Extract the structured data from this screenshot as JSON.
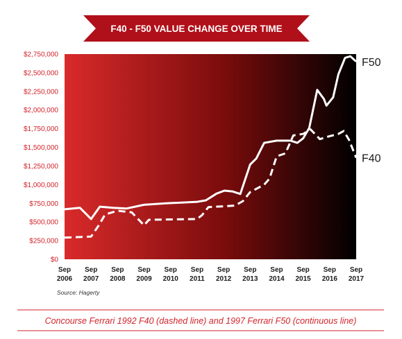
{
  "header": {
    "title": "F40 - F50 VALUE CHANGE OVER TIME"
  },
  "source": "Source: Hagerty",
  "caption": "Concourse Ferrari 1992 F40 (dashed line) and 1997 Ferrari F50 (continuous line)",
  "colors": {
    "banner": "#b0101a",
    "gradient_start": "#d92a2a",
    "gradient_mid": "#7a0c0c",
    "gradient_end": "#000000",
    "line": "#ffffff",
    "tick_text": "#d2232a",
    "caption": "#d2232a"
  },
  "chart_data": {
    "type": "line",
    "title": "F40 - F50 VALUE CHANGE OVER TIME",
    "xlabel": "",
    "ylabel": "",
    "ylim": [
      0,
      2750000
    ],
    "yticks": [
      0,
      250000,
      500000,
      750000,
      1000000,
      1250000,
      1500000,
      1750000,
      2000000,
      2250000,
      2500000,
      2750000
    ],
    "ytick_labels": [
      "$0",
      "$250,000",
      "$500,000",
      "$750,000",
      "$1,000,000",
      "$1,250,000",
      "$1,500,000",
      "$1,750,000",
      "$2,000,000",
      "$2,250,000",
      "$2,500,000",
      "$2,750,000"
    ],
    "xlim": [
      2006.67,
      2017.67
    ],
    "xticks": [
      {
        "x": 2006.67,
        "line1": "Sep",
        "line2": "2006"
      },
      {
        "x": 2007.67,
        "line1": "Sep",
        "line2": "2007"
      },
      {
        "x": 2008.67,
        "line1": "Sep",
        "line2": "2008"
      },
      {
        "x": 2009.67,
        "line1": "Sep",
        "line2": "2009"
      },
      {
        "x": 2010.67,
        "line1": "Sep",
        "line2": "2010"
      },
      {
        "x": 2011.67,
        "line1": "Sep",
        "line2": "2011"
      },
      {
        "x": 2012.67,
        "line1": "Sep",
        "line2": "2012"
      },
      {
        "x": 2013.67,
        "line1": "Sep",
        "line2": "2013"
      },
      {
        "x": 2014.67,
        "line1": "Sep",
        "line2": "2014"
      },
      {
        "x": 2015.67,
        "line1": "Sep",
        "line2": "2015"
      },
      {
        "x": 2016.67,
        "line1": "Sep",
        "line2": "2016"
      },
      {
        "x": 2017.67,
        "line1": "Sep",
        "line2": "2017"
      }
    ],
    "grid": false,
    "series": [
      {
        "name": "F50",
        "style": "solid",
        "points": [
          [
            2006.67,
            670000
          ],
          [
            2007.25,
            690000
          ],
          [
            2007.67,
            540000
          ],
          [
            2008.0,
            705000
          ],
          [
            2008.5,
            690000
          ],
          [
            2009.0,
            680000
          ],
          [
            2009.67,
            730000
          ],
          [
            2010.5,
            750000
          ],
          [
            2011.67,
            770000
          ],
          [
            2012.0,
            790000
          ],
          [
            2012.4,
            880000
          ],
          [
            2012.7,
            920000
          ],
          [
            2013.0,
            910000
          ],
          [
            2013.3,
            875000
          ],
          [
            2013.67,
            1270000
          ],
          [
            2013.9,
            1350000
          ],
          [
            2014.2,
            1560000
          ],
          [
            2014.67,
            1590000
          ],
          [
            2015.2,
            1590000
          ],
          [
            2015.45,
            1560000
          ],
          [
            2015.67,
            1620000
          ],
          [
            2015.9,
            1760000
          ],
          [
            2016.2,
            2270000
          ],
          [
            2016.45,
            2150000
          ],
          [
            2016.55,
            2060000
          ],
          [
            2016.8,
            2170000
          ],
          [
            2017.0,
            2480000
          ],
          [
            2017.25,
            2700000
          ],
          [
            2017.45,
            2720000
          ],
          [
            2017.67,
            2650000
          ]
        ]
      },
      {
        "name": "F40",
        "style": "dashed",
        "points": [
          [
            2006.67,
            290000
          ],
          [
            2007.67,
            305000
          ],
          [
            2007.95,
            450000
          ],
          [
            2008.2,
            600000
          ],
          [
            2008.67,
            650000
          ],
          [
            2009.2,
            630000
          ],
          [
            2009.67,
            455000
          ],
          [
            2009.85,
            530000
          ],
          [
            2011.67,
            540000
          ],
          [
            2011.85,
            590000
          ],
          [
            2012.1,
            700000
          ],
          [
            2012.67,
            710000
          ],
          [
            2013.1,
            720000
          ],
          [
            2013.4,
            780000
          ],
          [
            2013.67,
            900000
          ],
          [
            2014.2,
            1000000
          ],
          [
            2014.4,
            1080000
          ],
          [
            2014.67,
            1380000
          ],
          [
            2015.0,
            1420000
          ],
          [
            2015.3,
            1660000
          ],
          [
            2015.67,
            1680000
          ],
          [
            2015.95,
            1740000
          ],
          [
            2016.3,
            1610000
          ],
          [
            2016.67,
            1650000
          ],
          [
            2017.0,
            1680000
          ],
          [
            2017.2,
            1720000
          ],
          [
            2017.4,
            1600000
          ],
          [
            2017.67,
            1360000
          ]
        ]
      }
    ]
  }
}
